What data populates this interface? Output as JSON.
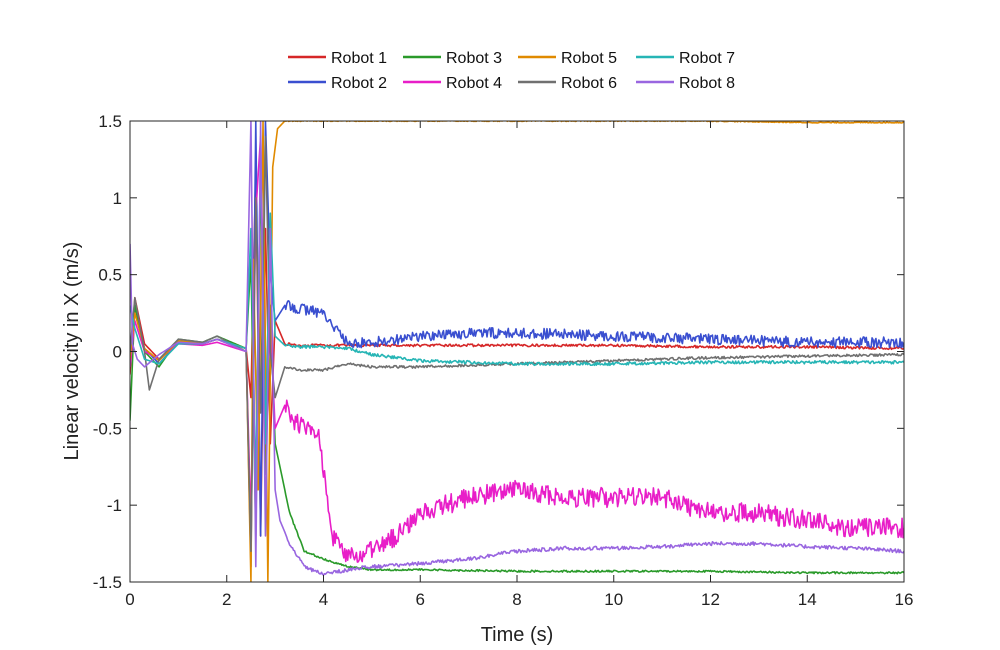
{
  "chart_data": {
    "type": "line",
    "title": "",
    "xlabel": "Time (s)",
    "ylabel": "Linear velocity in X (m/s)",
    "xlim": [
      0,
      16
    ],
    "ylim": [
      -1.5,
      1.5
    ],
    "x_ticks": [
      0,
      2,
      4,
      6,
      8,
      10,
      12,
      14,
      16
    ],
    "y_ticks": [
      -1.5,
      -1,
      -0.5,
      0,
      0.5,
      1,
      1.5
    ],
    "x_tick_labels": [
      "0",
      "2",
      "4",
      "6",
      "8",
      "10",
      "12",
      "14",
      "16"
    ],
    "y_tick_labels": [
      "-1.5",
      "-1",
      "-0.5",
      "0",
      "0.5",
      "1",
      "1.5"
    ],
    "grid": false,
    "legend_position": "top-center",
    "series": [
      {
        "name": "Robot 1",
        "color": "#d62728",
        "noise": 0.008,
        "x": [
          0,
          0.1,
          0.3,
          0.6,
          1,
          1.5,
          1.8,
          2.4,
          2.5,
          2.6,
          2.7,
          2.8,
          2.9,
          3.0,
          3.2,
          3.5,
          4,
          5,
          6,
          8,
          10,
          12,
          14,
          16
        ],
        "y": [
          -0.15,
          0.35,
          0.05,
          -0.05,
          0.06,
          0.05,
          0.08,
          0.02,
          -0.3,
          1.2,
          -1.2,
          0.8,
          -0.6,
          0.2,
          0.05,
          0.04,
          0.04,
          0.04,
          0.04,
          0.04,
          0.04,
          0.03,
          0.03,
          0.02
        ]
      },
      {
        "name": "Robot 2",
        "color": "#3a4fd0",
        "noise": 0.035,
        "x": [
          0,
          0.1,
          0.3,
          0.6,
          1,
          1.5,
          1.8,
          2.4,
          2.5,
          2.6,
          2.7,
          2.8,
          2.9,
          3.0,
          3.2,
          3.5,
          4,
          4.5,
          5,
          6,
          7,
          8,
          10,
          12,
          14,
          16
        ],
        "y": [
          -0.1,
          0.3,
          0.02,
          -0.08,
          0.06,
          0.05,
          0.08,
          0.02,
          -1.4,
          1.5,
          -1.2,
          1.5,
          0.5,
          0.2,
          0.3,
          0.28,
          0.25,
          0.05,
          0.06,
          0.1,
          0.12,
          0.12,
          0.1,
          0.08,
          0.06,
          0.06
        ]
      },
      {
        "name": "Robot 3",
        "color": "#2a9a2a",
        "noise": 0.006,
        "x": [
          0,
          0.1,
          0.3,
          0.6,
          1,
          1.5,
          1.8,
          2.4,
          2.5,
          2.6,
          2.7,
          2.8,
          2.9,
          3.0,
          3.3,
          3.6,
          4,
          4.5,
          5,
          6,
          8,
          10,
          12,
          14,
          16
        ],
        "y": [
          -0.45,
          0.3,
          0.0,
          -0.1,
          0.08,
          0.06,
          0.1,
          0.02,
          0.6,
          -1.2,
          1.2,
          -0.8,
          0.3,
          -0.6,
          -1.05,
          -1.3,
          -1.35,
          -1.4,
          -1.42,
          -1.42,
          -1.43,
          -1.43,
          -1.43,
          -1.44,
          -1.44
        ]
      },
      {
        "name": "Robot 4",
        "color": "#e81ec8",
        "noise": 0.065,
        "x": [
          0,
          0.1,
          0.3,
          0.6,
          1,
          1.5,
          1.8,
          2.4,
          2.5,
          2.6,
          2.7,
          2.8,
          2.9,
          3.0,
          3.2,
          3.4,
          3.6,
          3.9,
          4.2,
          4.5,
          5,
          5.5,
          6,
          7,
          8,
          9,
          10,
          11,
          12,
          13,
          14,
          15,
          16
        ],
        "y": [
          -0.1,
          0.2,
          0.0,
          -0.05,
          0.05,
          0.04,
          0.06,
          0.0,
          -1.1,
          0.9,
          1.4,
          -0.4,
          0.2,
          -0.5,
          -0.35,
          -0.45,
          -0.5,
          -0.55,
          -1.2,
          -1.35,
          -1.3,
          -1.2,
          -1.05,
          -0.95,
          -0.9,
          -0.95,
          -0.95,
          -0.95,
          -1.05,
          -1.05,
          -1.1,
          -1.15,
          -1.15
        ]
      },
      {
        "name": "Robot 5",
        "color": "#e08a00",
        "noise": 0.003,
        "x": [
          0,
          0.1,
          0.3,
          0.6,
          1,
          1.5,
          1.8,
          2.4,
          2.5,
          2.55,
          2.65,
          2.75,
          2.85,
          2.95,
          3.05,
          3.2,
          3.5,
          4,
          6,
          8,
          10,
          12,
          14,
          16
        ],
        "y": [
          -0.05,
          0.25,
          0.02,
          -0.06,
          0.07,
          0.05,
          0.08,
          0.02,
          -1.5,
          0.6,
          -0.9,
          1.5,
          -1.5,
          1.2,
          1.45,
          1.5,
          1.5,
          1.5,
          1.5,
          1.5,
          1.5,
          1.5,
          1.49,
          1.49
        ]
      },
      {
        "name": "Robot 6",
        "color": "#707070",
        "noise": 0.008,
        "x": [
          0,
          0.1,
          0.3,
          0.4,
          0.6,
          1,
          1.5,
          1.8,
          2.4,
          2.5,
          2.6,
          2.7,
          2.8,
          2.9,
          3.0,
          3.2,
          3.5,
          4,
          4.5,
          5,
          6,
          8,
          10,
          12,
          14,
          16
        ],
        "y": [
          0.0,
          0.35,
          0.0,
          -0.25,
          -0.05,
          0.08,
          0.06,
          0.1,
          0.0,
          -1.3,
          1.0,
          -0.4,
          1.4,
          0.0,
          -0.3,
          -0.1,
          -0.12,
          -0.12,
          -0.08,
          -0.1,
          -0.1,
          -0.08,
          -0.06,
          -0.04,
          -0.03,
          -0.02
        ]
      },
      {
        "name": "Robot 7",
        "color": "#26b5b5",
        "noise": 0.01,
        "x": [
          0,
          0.1,
          0.3,
          0.6,
          1,
          1.5,
          1.8,
          2.4,
          2.5,
          2.6,
          2.7,
          2.8,
          2.9,
          3.0,
          3.2,
          3.5,
          4,
          4.5,
          5,
          6,
          8,
          10,
          12,
          14,
          16
        ],
        "y": [
          0.3,
          0.15,
          -0.05,
          -0.08,
          0.05,
          0.05,
          0.08,
          0.02,
          0.8,
          -0.9,
          1.3,
          -0.6,
          0.9,
          0.1,
          0.04,
          0.03,
          0.03,
          0.02,
          -0.02,
          -0.06,
          -0.08,
          -0.08,
          -0.07,
          -0.07,
          -0.07
        ]
      },
      {
        "name": "Robot 8",
        "color": "#9966e0",
        "noise": 0.012,
        "x": [
          0,
          0.05,
          0.15,
          0.3,
          0.6,
          1,
          1.5,
          1.8,
          2.4,
          2.5,
          2.6,
          2.7,
          2.8,
          2.9,
          3.0,
          3.1,
          3.3,
          3.6,
          4,
          4.5,
          5,
          6,
          7,
          8,
          9,
          10,
          11,
          12,
          13,
          14,
          15,
          16
        ],
        "y": [
          0.7,
          0.05,
          -0.05,
          -0.1,
          -0.02,
          0.06,
          0.05,
          0.08,
          0.0,
          1.5,
          -1.4,
          1.5,
          -1.2,
          0.8,
          -0.9,
          -1.1,
          -1.25,
          -1.4,
          -1.45,
          -1.42,
          -1.4,
          -1.38,
          -1.35,
          -1.3,
          -1.28,
          -1.28,
          -1.27,
          -1.25,
          -1.25,
          -1.27,
          -1.28,
          -1.3
        ]
      }
    ]
  }
}
